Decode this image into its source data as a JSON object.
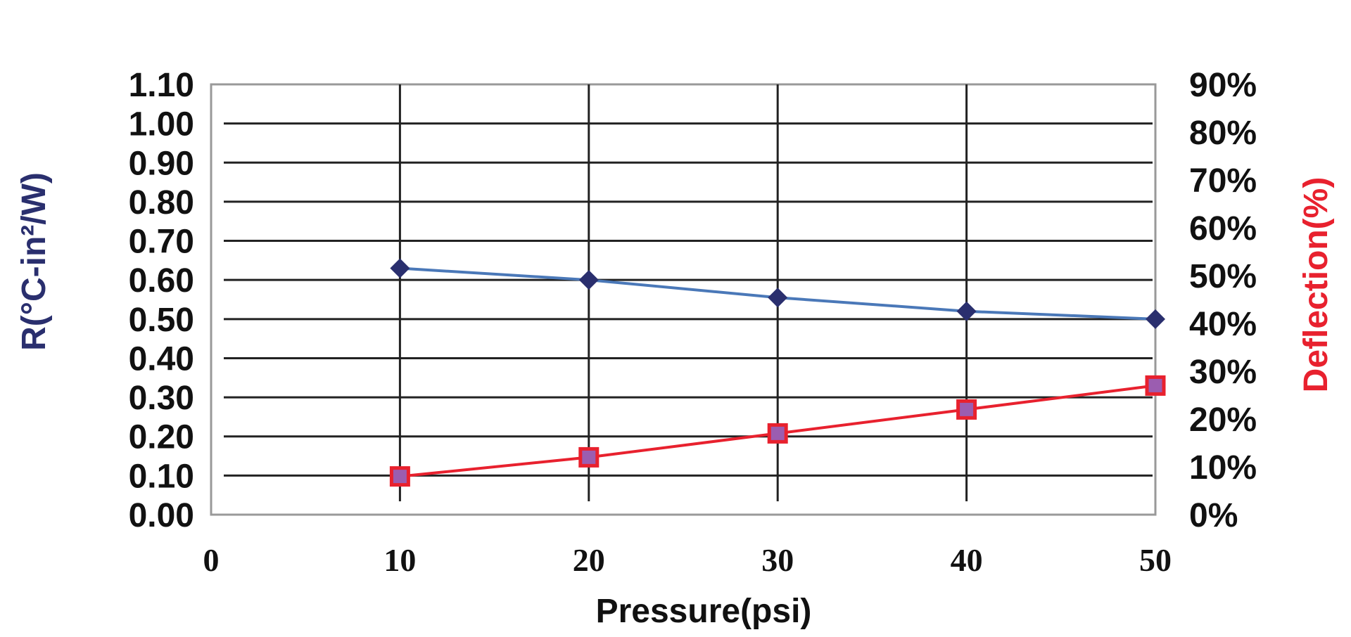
{
  "chart_data": {
    "type": "line",
    "x": [
      10,
      20,
      30,
      40,
      50
    ],
    "xlabel": "Pressure(psi)",
    "xlim": [
      0,
      50
    ],
    "x_ticks": [
      "0",
      "10",
      "20",
      "30",
      "40",
      "50"
    ],
    "y_left": {
      "label": "R(°C-in²/W)",
      "lim": [
        0,
        1.1
      ],
      "ticks": [
        "0.00",
        "0.10",
        "0.20",
        "0.30",
        "0.40",
        "0.50",
        "0.60",
        "0.70",
        "0.80",
        "0.90",
        "1.00",
        "1.10"
      ]
    },
    "y_right": {
      "label": "Deflection(%)",
      "lim": [
        0,
        90
      ],
      "ticks": [
        "0%",
        "10%",
        "20%",
        "30%",
        "40%",
        "50%",
        "60%",
        "70%",
        "80%",
        "90%"
      ]
    },
    "series": [
      {
        "axis": "left",
        "marker": "diamond",
        "color": "#2a2f6e",
        "line_color": "#4a78b8",
        "values": [
          0.63,
          0.6,
          0.555,
          0.52,
          0.5
        ]
      },
      {
        "axis": "right",
        "marker": "square",
        "color": "#e8212e",
        "fill": "#9b5db0",
        "values": [
          8,
          12,
          17,
          22,
          27
        ]
      }
    ],
    "grid": true,
    "colors": {
      "left_axis": "#2a2f6e",
      "right_axis": "#e8212e"
    }
  }
}
